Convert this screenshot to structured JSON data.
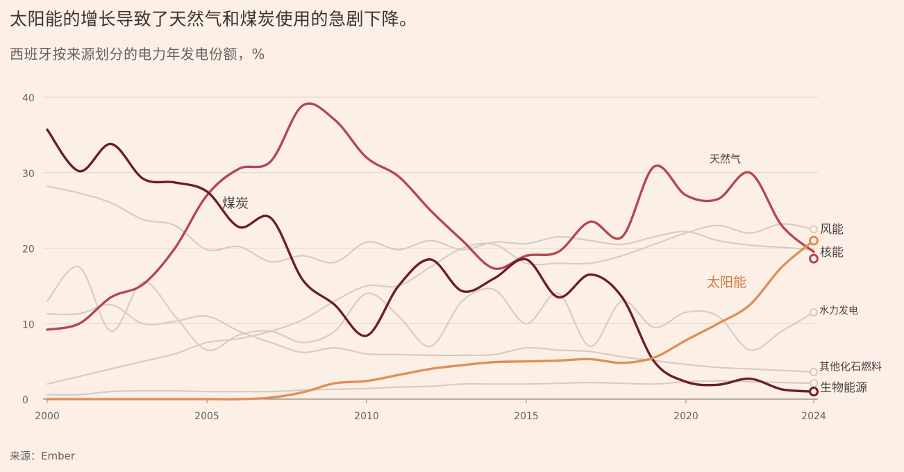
{
  "title": "太阳能的增长导致了天然气和煤炭使用的急剧下降。",
  "subtitle": "西班牙按来源划分的电力年发电份额，%",
  "source": "来源：Ember",
  "chart_data": {
    "type": "line",
    "title": "太阳能的增长导致了天然气和煤炭使用的急剧下降。",
    "subtitle": "西班牙按来源划分的电力年发电份额，%",
    "xlabel": "",
    "ylabel": "",
    "xlim": [
      2000,
      2024
    ],
    "ylim": [
      0,
      40
    ],
    "grid": true,
    "x_ticks": [
      2000,
      2005,
      2010,
      2015,
      2020,
      2024
    ],
    "y_ticks": [
      0,
      10,
      20,
      30,
      40
    ],
    "x": [
      2000,
      2001,
      2002,
      2003,
      2004,
      2005,
      2006,
      2007,
      2008,
      2009,
      2010,
      2011,
      2012,
      2013,
      2014,
      2015,
      2016,
      2017,
      2018,
      2019,
      2020,
      2021,
      2022,
      2023,
      2024
    ],
    "series": [
      {
        "name": "天然气",
        "label": "天然气",
        "color": "#b5474e",
        "highlight": true,
        "values": [
          9.2,
          10.0,
          13.5,
          15.2,
          20.0,
          27.0,
          30.5,
          31.5,
          38.9,
          37.0,
          32.0,
          29.5,
          25.0,
          21.0,
          17.3,
          19.0,
          19.5,
          23.5,
          21.5,
          30.8,
          27.0,
          26.5,
          30.0,
          23.0,
          19.5
        ]
      },
      {
        "name": "煤炭",
        "label": "煤炭",
        "color": "#6b1d2e",
        "highlight": true,
        "end_marker": true,
        "values": [
          35.7,
          30.2,
          33.8,
          29.2,
          28.7,
          27.5,
          22.8,
          24.0,
          15.8,
          12.5,
          8.4,
          15.0,
          18.5,
          14.3,
          16.0,
          18.5,
          13.5,
          16.5,
          13.5,
          5.0,
          2.3,
          1.9,
          2.7,
          1.3,
          1.0
        ]
      },
      {
        "name": "太阳能",
        "label": "太阳能",
        "color": "#de8f5a",
        "highlight": true,
        "end_marker": true,
        "values": [
          0.0,
          0.0,
          0.0,
          0.0,
          0.0,
          0.0,
          0.0,
          0.2,
          0.9,
          2.1,
          2.4,
          3.2,
          4.0,
          4.5,
          4.9,
          5.0,
          5.1,
          5.3,
          4.8,
          5.5,
          7.8,
          10.0,
          12.5,
          17.5,
          21.0
        ]
      },
      {
        "name": "风能",
        "label": "风能",
        "color": "#d6ccc4",
        "highlight": false,
        "end_marker": true,
        "values": [
          2.0,
          3.0,
          4.0,
          5.0,
          6.0,
          7.5,
          8.0,
          9.0,
          10.5,
          13.0,
          15.0,
          15.0,
          17.5,
          20.0,
          20.5,
          18.0,
          18.0,
          18.0,
          19.0,
          20.5,
          22.0,
          23.0,
          22.0,
          23.2,
          22.5
        ]
      },
      {
        "name": "核能",
        "label": "核能",
        "color": "#d6ccc4",
        "highlight": false,
        "values": [
          28.2,
          27.3,
          26.0,
          23.8,
          23.0,
          19.8,
          20.2,
          18.2,
          19.0,
          18.1,
          20.8,
          19.8,
          21.0,
          19.8,
          20.8,
          20.6,
          21.5,
          21.0,
          20.5,
          21.5,
          22.2,
          21.0,
          20.4,
          20.1,
          19.8
        ]
      },
      {
        "name": "水力发电",
        "label": "水力发电",
        "color": "#d6ccc4",
        "highlight": false,
        "end_marker": true,
        "values": [
          13.0,
          17.5,
          9.0,
          15.5,
          11.0,
          6.5,
          8.5,
          9.0,
          7.5,
          9.0,
          14.0,
          11.0,
          7.0,
          13.0,
          14.5,
          10.0,
          14.0,
          7.0,
          13.0,
          9.5,
          11.5,
          11.0,
          6.5,
          9.0,
          11.5
        ]
      },
      {
        "name": "其他化石燃料",
        "label": "其他化石燃料",
        "color": "#d6ccc4",
        "highlight": false,
        "end_marker": true,
        "values": [
          11.3,
          11.3,
          12.5,
          10.0,
          10.3,
          11.0,
          9.0,
          7.5,
          6.2,
          6.8,
          6.0,
          5.9,
          5.8,
          5.8,
          5.9,
          6.8,
          6.5,
          6.3,
          5.6,
          5.1,
          4.6,
          4.2,
          4.0,
          3.8,
          3.6
        ]
      },
      {
        "name": "生物能源",
        "label": "生物能源",
        "color": "#d6ccc4",
        "highlight": false,
        "end_marker": true,
        "values": [
          0.6,
          0.6,
          1.0,
          1.1,
          1.1,
          1.0,
          1.0,
          1.0,
          1.2,
          1.3,
          1.4,
          1.6,
          1.7,
          2.0,
          2.0,
          2.0,
          2.1,
          2.2,
          2.1,
          2.0,
          2.3,
          2.4,
          2.3,
          2.2,
          2.1
        ]
      }
    ]
  }
}
